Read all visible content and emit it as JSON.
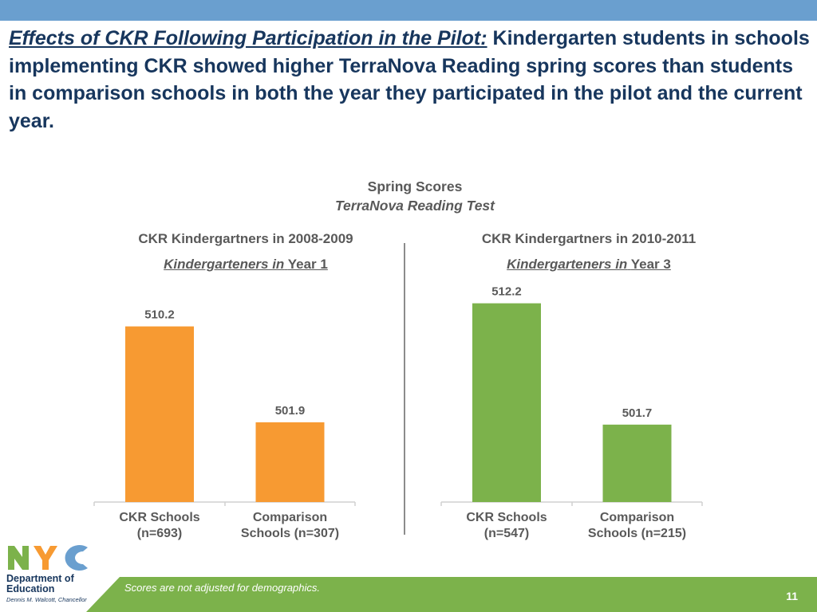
{
  "headline": {
    "lead": "Effects of CKR Following Participation in the Pilot:",
    "body": "Kindergarten students in schools implementing CKR showed higher TerraNova Reading spring scores than students in comparison schools in both the year they participated in the pilot and the current year."
  },
  "chart_header": {
    "title": "Spring Scores",
    "subtitle": "TerraNova Reading Test"
  },
  "panels": [
    {
      "title": "CKR Kindergartners in 2008-2009",
      "subtitle_italic": "Kindergarteners in",
      "subtitle_rest": "Year 1"
    },
    {
      "title": "CKR Kindergartners in 2010-2011",
      "subtitle_italic": "Kindergarteners in",
      "subtitle_rest": "Year 3"
    }
  ],
  "chart_data": [
    {
      "type": "bar",
      "title": "CKR Kindergartners in 2008-2009",
      "categories": [
        "CKR Schools (n=693)",
        "Comparison Schools (n=307)"
      ],
      "category_lines": [
        [
          "CKR Schools",
          "(n=693)"
        ],
        [
          "Comparison",
          "Schools (n=307)"
        ]
      ],
      "values": [
        510.2,
        501.9
      ],
      "value_labels": [
        "510.2",
        "501.9"
      ],
      "color": "#f79a32",
      "ylim": [
        495,
        515
      ],
      "grid": false
    },
    {
      "type": "bar",
      "title": "CKR Kindergartners in 2010-2011",
      "categories": [
        "CKR Schools (n=547)",
        "Comparison Schools (n=215)"
      ],
      "category_lines": [
        [
          "CKR Schools",
          "(n=547)"
        ],
        [
          "Comparison",
          "Schools (n=215)"
        ]
      ],
      "values": [
        512.2,
        501.7
      ],
      "value_labels": [
        "512.2",
        "501.7"
      ],
      "color": "#7cb24b",
      "ylim": [
        495,
        515
      ],
      "grid": false
    }
  ],
  "footer": {
    "note": "Scores are not adjusted for demographics.",
    "page_number": "11"
  },
  "logo": {
    "mark_letters": "NYC",
    "department": "Department of Education",
    "chancellor": "Dennis M. Walcott, Chancellor",
    "colors": [
      "#7cb24b",
      "#f79a32",
      "#6a9fcf"
    ]
  }
}
